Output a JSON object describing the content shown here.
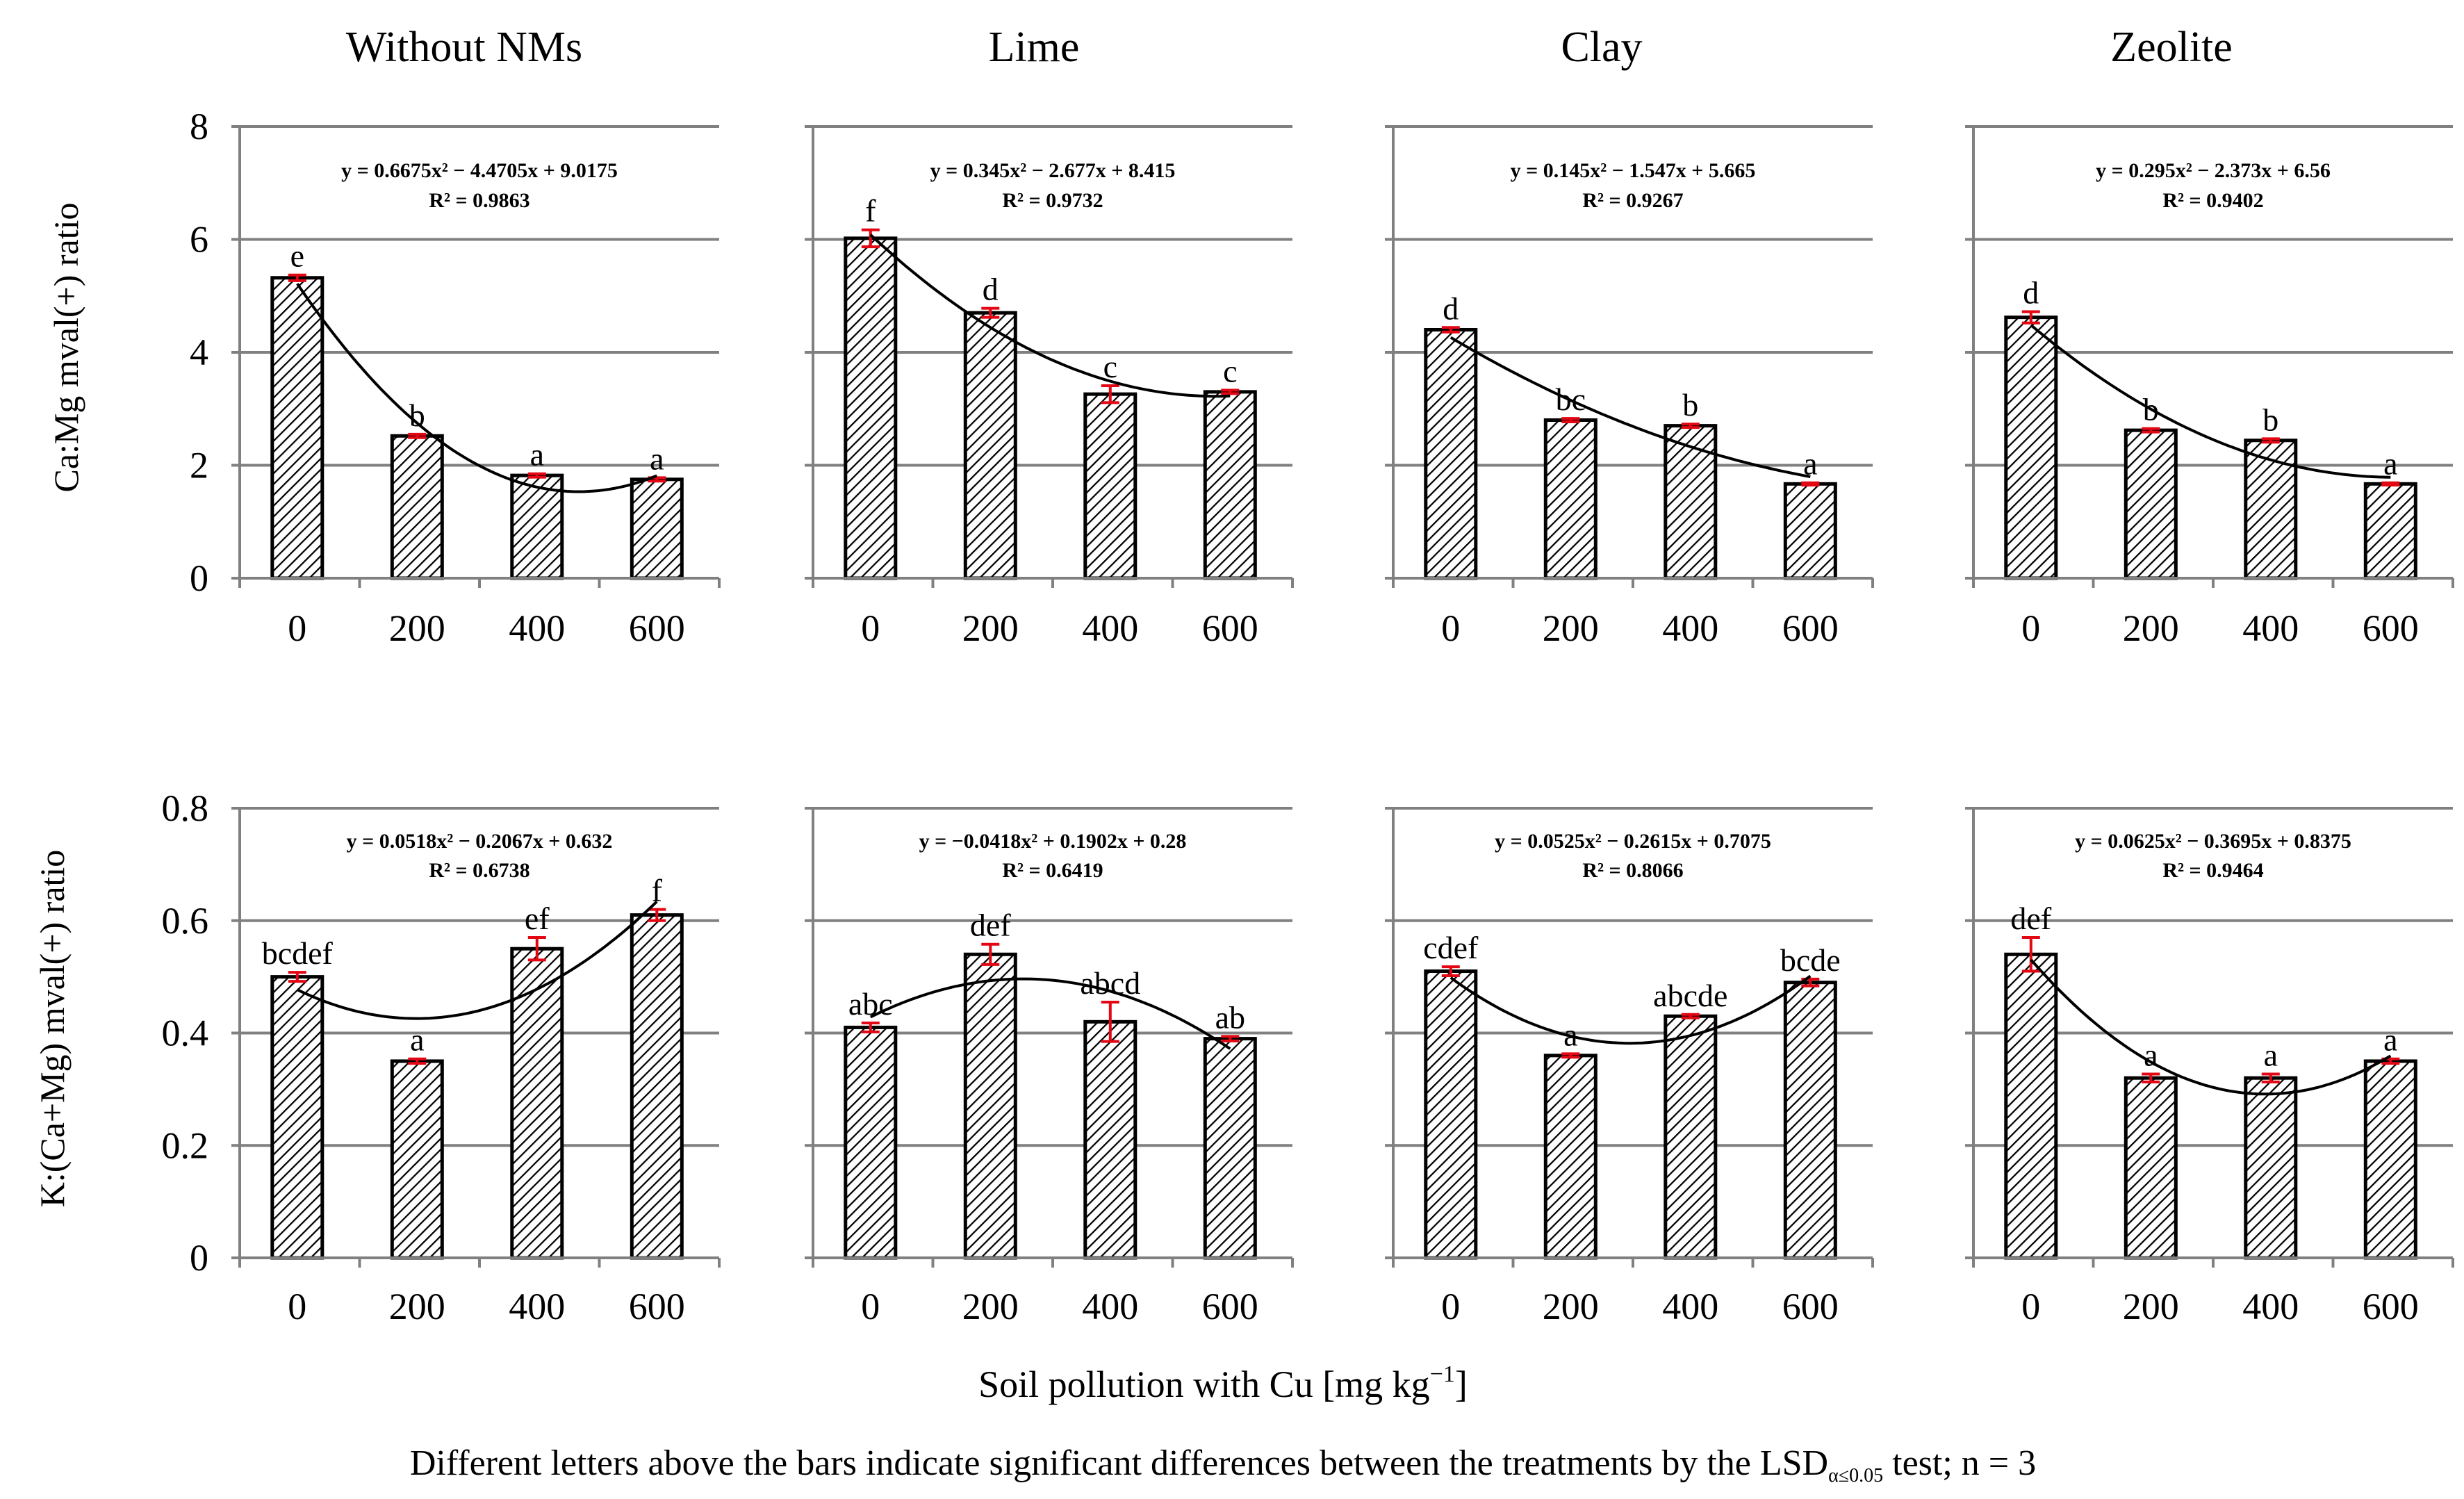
{
  "figure": {
    "column_titles": [
      "Without NMs",
      "Lime",
      "Clay",
      "Zeolite"
    ],
    "x_axis_title": "Soil pollution with Cu [mg kg",
    "x_axis_unit_sup": "−1",
    "x_axis_title_end": "]",
    "footnote_main": "Different letters above the bars indicate significant differences between the treatments by the LSD",
    "footnote_sub": "α≤0.05",
    "footnote_end": " test; n = 3"
  },
  "colors": {
    "bar_outline": "#000000",
    "error_bar": "#e30613",
    "gridline": "#808080",
    "trend": "#000000",
    "background": "#ffffff"
  },
  "chart_data": [
    {
      "type": "bar",
      "title": "Ca:Mg mval(+) ratio",
      "ylabel": "Ca:Mg mval(+) ratio",
      "xlabel": "Soil pollution with Cu [mg kg−1]",
      "ylim": [
        0,
        8
      ],
      "yticks": [
        0,
        2,
        4,
        6,
        8
      ],
      "ytick_labels": [
        "0",
        "2",
        "4",
        "6",
        "8"
      ],
      "grid": true,
      "categories": [
        "0",
        "200",
        "400",
        "600"
      ],
      "panels": [
        {
          "name": "Without NMs",
          "values": [
            5.32,
            2.52,
            1.82,
            1.75
          ],
          "errors": [
            0.05,
            0.03,
            0.03,
            0.03
          ],
          "letters": [
            "e",
            "b",
            "a",
            "a"
          ],
          "trend_eq": "y = 0.6675x² − 4.4705x + 9.0175",
          "r2": "R² = 0.9863",
          "coef": [
            0.6675,
            -4.4705,
            9.0175
          ]
        },
        {
          "name": "Lime",
          "values": [
            6.02,
            4.7,
            3.26,
            3.3
          ],
          "errors": [
            0.15,
            0.08,
            0.15,
            0.03
          ],
          "letters": [
            "f",
            "d",
            "c",
            "c"
          ],
          "trend_eq": "y = 0.345x² − 2.677x + 8.415",
          "r2": "R² = 0.9732",
          "coef": [
            0.345,
            -2.677,
            8.415
          ]
        },
        {
          "name": "Clay",
          "values": [
            4.4,
            2.8,
            2.7,
            1.67
          ],
          "errors": [
            0.04,
            0.03,
            0.03,
            0.02
          ],
          "letters": [
            "d",
            "bc",
            "b",
            "a"
          ],
          "trend_eq": "y = 0.145x² − 1.547x + 5.665",
          "r2": "R² = 0.9267",
          "coef": [
            0.145,
            -1.547,
            5.665
          ]
        },
        {
          "name": "Zeolite",
          "values": [
            4.62,
            2.62,
            2.44,
            1.67
          ],
          "errors": [
            0.1,
            0.03,
            0.03,
            0.02
          ],
          "letters": [
            "d",
            "b",
            "b",
            "a"
          ],
          "trend_eq": "y = 0.295x² − 2.373x + 6.56",
          "r2": "R² = 0.9402",
          "coef": [
            0.295,
            -2.373,
            6.56
          ]
        }
      ]
    },
    {
      "type": "bar",
      "title": "K:(Ca+Mg) mval(+) ratio",
      "ylabel": "K:(Ca+Mg) mval(+) ratio",
      "xlabel": "Soil pollution with Cu [mg kg−1]",
      "ylim": [
        0,
        0.8
      ],
      "yticks": [
        0,
        0.2,
        0.4,
        0.6,
        0.8
      ],
      "ytick_labels": [
        "0",
        "0.2",
        "0.4",
        "0.6",
        "0.8"
      ],
      "grid": true,
      "categories": [
        "0",
        "200",
        "400",
        "600"
      ],
      "panels": [
        {
          "name": "Without NMs",
          "values": [
            0.5,
            0.35,
            0.55,
            0.61
          ],
          "errors": [
            0.008,
            0.004,
            0.02,
            0.01
          ],
          "letters": [
            "bcdef",
            "a",
            "ef",
            "f"
          ],
          "trend_eq": "y = 0.0518x² − 0.2067x + 0.632",
          "r2": "R² = 0.6738",
          "coef": [
            0.0518,
            -0.2067,
            0.632
          ]
        },
        {
          "name": "Lime",
          "values": [
            0.41,
            0.54,
            0.42,
            0.39
          ],
          "errors": [
            0.008,
            0.018,
            0.035,
            0.004
          ],
          "letters": [
            "abc",
            "def",
            "abcd",
            "ab"
          ],
          "trend_eq": "y = −0.0418x² + 0.1902x + 0.28",
          "r2": "R² = 0.6419",
          "coef": [
            -0.0418,
            0.1902,
            0.28
          ]
        },
        {
          "name": "Clay",
          "values": [
            0.51,
            0.36,
            0.43,
            0.49
          ],
          "errors": [
            0.008,
            0.003,
            0.003,
            0.006
          ],
          "letters": [
            "cdef",
            "a",
            "abcde",
            "bcde"
          ],
          "trend_eq": "y = 0.0525x² − 0.2615x + 0.7075",
          "r2": "R² = 0.8066",
          "coef": [
            0.0525,
            -0.2615,
            0.7075
          ]
        },
        {
          "name": "Zeolite",
          "values": [
            0.54,
            0.32,
            0.32,
            0.35
          ],
          "errors": [
            0.03,
            0.007,
            0.007,
            0.004
          ],
          "letters": [
            "def",
            "a",
            "a",
            "a"
          ],
          "trend_eq": "y = 0.0625x² − 0.3695x + 0.8375",
          "r2": "R² = 0.9464",
          "coef": [
            0.0625,
            -0.3695,
            0.8375
          ]
        }
      ]
    }
  ]
}
